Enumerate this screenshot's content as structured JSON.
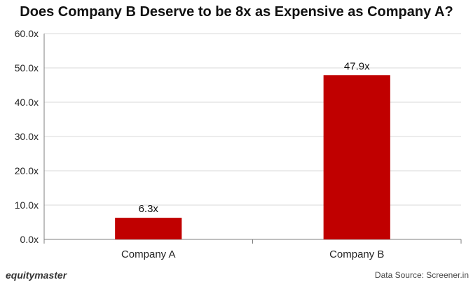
{
  "chart_data": {
    "type": "bar",
    "title": "Does Company B Deserve to be 8x as Expensive as Company A?",
    "categories": [
      "Company A",
      "Company B"
    ],
    "values": [
      6.3,
      47.9
    ],
    "data_labels": [
      "6.3x",
      "47.9x"
    ],
    "ylim": [
      0,
      60
    ],
    "yticks": [
      0,
      10,
      20,
      30,
      40,
      50,
      60
    ],
    "ytick_labels": [
      "0.0x",
      "10.0x",
      "20.0x",
      "30.0x",
      "40.0x",
      "50.0x",
      "60.0x"
    ],
    "xlabel": "",
    "ylabel": "",
    "grid": true,
    "bar_color": "#c00000"
  },
  "footer": {
    "brand": "equitymaster",
    "source": "Data Source: Screener.in"
  }
}
